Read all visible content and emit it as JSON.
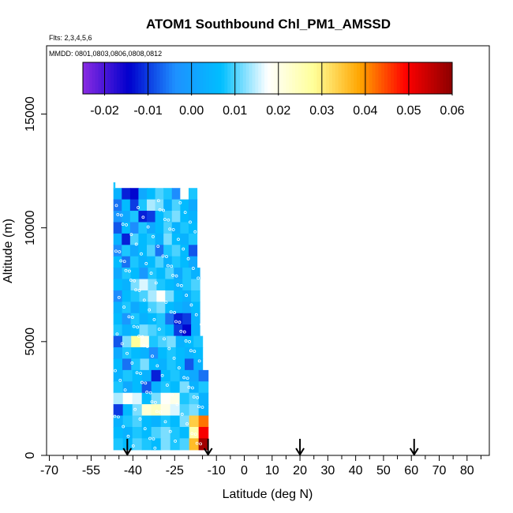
{
  "chart_data": {
    "type": "heatmap",
    "title": "ATOM1 Southbound Chl_PM1_AMSSD",
    "flights_note": "Flts: 2,3,4,5,6",
    "mmdd_note": "MMDD: 0801,0803,0806,0808,0812",
    "xlabel": "Latitude (deg N)",
    "ylabel": "Altitude (m)",
    "xlim": [
      -71,
      88
    ],
    "ylim": [
      0,
      18000
    ],
    "x_ticks": [
      -70,
      -55,
      -40,
      -25,
      -10,
      0,
      10,
      20,
      30,
      40,
      50,
      60,
      70,
      80
    ],
    "x_tick_labels": [
      "-70",
      "-55",
      "-40",
      "-25",
      "-10",
      "0",
      "10",
      "20",
      "30",
      "40",
      "50",
      "60",
      "70",
      "80"
    ],
    "y_ticks": [
      0,
      5000,
      10000,
      15000
    ],
    "y_tick_labels": [
      "0",
      "5000",
      "10000",
      "15000"
    ],
    "colorbar": {
      "min": -0.025,
      "max": 0.06,
      "ticks": [
        -0.02,
        -0.01,
        0.0,
        0.01,
        0.02,
        0.03,
        0.04,
        0.05,
        0.06
      ],
      "tick_labels": [
        "-0.02",
        "-0.01",
        "0.00",
        "0.01",
        "0.02",
        "0.03",
        "0.04",
        "0.05",
        "0.06"
      ],
      "colors": [
        "#8a2be2",
        "#0000cd",
        "#1e90ff",
        "#00bfff",
        "#ffffff",
        "#ffff99",
        "#ffa500",
        "#ff0000",
        "#8b0000"
      ]
    },
    "arrow_latitudes": [
      -42,
      -13,
      20,
      61
    ],
    "data_extent": {
      "lat_min": -47,
      "lat_max": -12.5,
      "alt_min": 0,
      "alt_max": 11800
    },
    "rows": [
      {
        "alt": 11500,
        "lat_max": -17,
        "values": [
          0.004,
          -0.012,
          -0.014,
          0.002,
          0.006,
          0.01,
          0.008,
          -0.004,
          0.018,
          0.008
        ]
      },
      {
        "alt": 11000,
        "lat_max": -17,
        "values": [
          -0.006,
          0.006,
          -0.01,
          0.008,
          0.014,
          0.012,
          0.004,
          0.01,
          0.006,
          0.002
        ]
      },
      {
        "alt": 10500,
        "lat_max": -17,
        "values": [
          -0.002,
          0.002,
          0.008,
          -0.012,
          -0.01,
          0.006,
          0.009,
          0.012,
          0.006,
          0.004
        ]
      },
      {
        "alt": 10000,
        "lat_max": -17,
        "values": [
          -0.008,
          0.006,
          -0.004,
          0.008,
          0.002,
          0.006,
          0.01,
          0.004,
          0.008,
          0.006
        ]
      },
      {
        "alt": 9500,
        "lat_max": -17,
        "values": [
          0.004,
          -0.012,
          0.01,
          0.006,
          0.008,
          0.004,
          0.012,
          0.006,
          0.004,
          0.008
        ]
      },
      {
        "alt": 9000,
        "lat_max": -17,
        "values": [
          -0.004,
          0.008,
          0.002,
          0.006,
          0.01,
          -0.006,
          0.008,
          0.01,
          0.006,
          -0.008
        ]
      },
      {
        "alt": 8500,
        "lat_max": -17,
        "values": [
          0.006,
          -0.006,
          0.008,
          0.004,
          0.006,
          0.01,
          0.004,
          0.008,
          0.006,
          0.002
        ]
      },
      {
        "alt": 8000,
        "lat_max": -16,
        "values": [
          0.002,
          0.008,
          0.006,
          -0.002,
          0.008,
          0.006,
          0.01,
          0.002,
          0.008,
          0.004
        ]
      },
      {
        "alt": 7500,
        "lat_max": -16,
        "values": [
          0.006,
          0.004,
          0.012,
          0.016,
          0.012,
          0.008,
          0.006,
          0.004,
          0.008,
          0.01
        ]
      },
      {
        "alt": 7000,
        "lat_max": -16,
        "values": [
          -0.004,
          0.006,
          0.008,
          0.01,
          0.014,
          0.018,
          0.012,
          0.006,
          0.004,
          0.008
        ]
      },
      {
        "alt": 6500,
        "lat_max": -16,
        "values": [
          0.004,
          0.008,
          0.002,
          0.006,
          0.01,
          0.012,
          0.006,
          0.004,
          0.002,
          0.006
        ]
      },
      {
        "alt": 6000,
        "lat_max": -16,
        "values": [
          0.006,
          -0.002,
          0.008,
          0.004,
          0.006,
          0.008,
          -0.006,
          -0.012,
          -0.01,
          0.004
        ]
      },
      {
        "alt": 5500,
        "lat_max": -16,
        "values": [
          0.008,
          0.004,
          0.006,
          0.012,
          0.01,
          0.008,
          0.006,
          -0.01,
          -0.014,
          0.004
        ]
      },
      {
        "alt": 5000,
        "lat_max": -15,
        "values": [
          -0.008,
          0.012,
          0.028,
          0.02,
          0.008,
          0.01,
          0.012,
          0.004,
          0.006,
          0.008
        ]
      },
      {
        "alt": 4500,
        "lat_max": -15,
        "values": [
          0.002,
          0.008,
          0.006,
          0.004,
          -0.004,
          0.006,
          0.008,
          0.006,
          0.004,
          0.006
        ]
      },
      {
        "alt": 4000,
        "lat_max": -15,
        "values": [
          0.006,
          -0.006,
          0.008,
          0.012,
          0.006,
          0.004,
          0.008,
          0.006,
          -0.008,
          0.004
        ]
      },
      {
        "alt": 3500,
        "lat_max": -13,
        "values": [
          0.004,
          0.008,
          0.006,
          0.004,
          -0.012,
          0.006,
          0.008,
          0.004,
          0.002,
          -0.006
        ]
      },
      {
        "alt": 3000,
        "lat_max": -13,
        "values": [
          0.008,
          0.002,
          0.006,
          -0.008,
          0.004,
          0.008,
          0.006,
          0.012,
          0.004,
          0.008
        ]
      },
      {
        "alt": 2500,
        "lat_max": -13,
        "values": [
          0.014,
          0.018,
          0.016,
          0.006,
          0.012,
          0.018,
          0.02,
          0.008,
          0.01,
          0.004
        ]
      },
      {
        "alt": 2000,
        "lat_max": -13,
        "values": [
          -0.01,
          0.006,
          0.012,
          0.022,
          0.024,
          0.02,
          0.016,
          0.01,
          0.012,
          0.004
        ]
      },
      {
        "alt": 1500,
        "lat_max": -13,
        "values": [
          0.004,
          0.008,
          0.01,
          0.006,
          0.004,
          0.008,
          0.006,
          0.012,
          0.034,
          0.042
        ]
      },
      {
        "alt": 1000,
        "lat_max": -13,
        "values": [
          0.006,
          0.004,
          0.008,
          0.006,
          0.01,
          0.012,
          0.008,
          0.006,
          0.026,
          0.05
        ]
      },
      {
        "alt": 500,
        "lat_max": -13,
        "values": [
          0.008,
          0.006,
          0.01,
          0.008,
          0.006,
          0.012,
          0.008,
          0.01,
          0.036,
          0.058
        ]
      }
    ]
  }
}
